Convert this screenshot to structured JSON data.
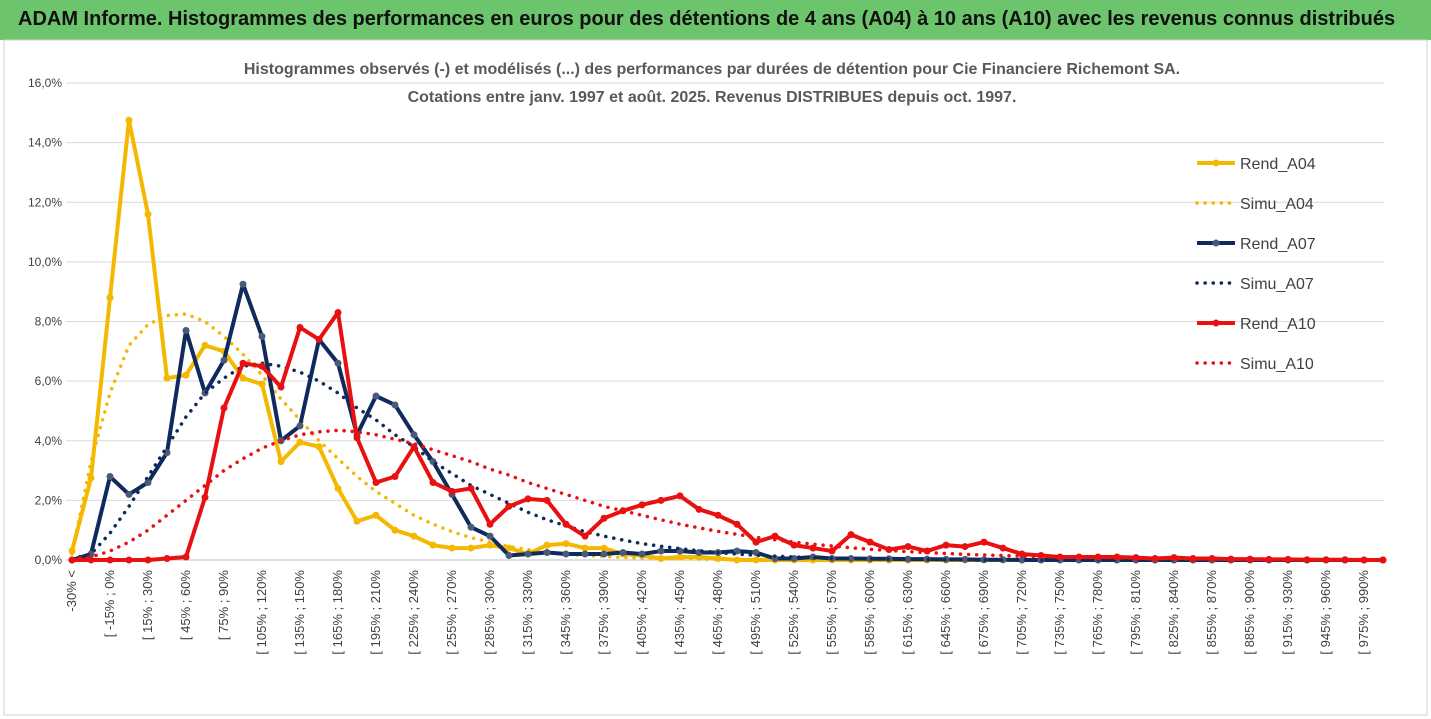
{
  "header": {
    "title": "ADAM Informe. Histogrammes des performances en euros pour des détentions de 4 ans (A04) à 10 ans (A10) avec les revenus connus distribués"
  },
  "chart_data": {
    "type": "line",
    "title": [
      "Histogrammes observés (-) et modélisés (...) des performances par durées de détention pour Cie Financiere Richemont SA.",
      "Cotations entre janv. 1997 et août. 2025. Revenus DISTRIBUES depuis oct. 1997."
    ],
    "categories": [
      "-30% <",
      null,
      "[ -15% ; 0%",
      null,
      "[ 15% ; 30%",
      null,
      "[ 45% ; 60%",
      null,
      "[ 75% ; 90%",
      null,
      "[ 105% ; 120%",
      null,
      "[ 135% ; 150%",
      null,
      "[ 165% ; 180%",
      null,
      "[ 195% ; 210%",
      null,
      "[ 225% ; 240%",
      null,
      "[ 255% ; 270%",
      null,
      "[ 285% ; 300%",
      null,
      "[ 315% ; 330%",
      null,
      "[ 345% ; 360%",
      null,
      "[ 375% ; 390%",
      null,
      "[ 405% ; 420%",
      null,
      "[ 435% ; 450%",
      null,
      "[ 465% ; 480%",
      null,
      "[ 495% ; 510%",
      null,
      "[ 525% ; 540%",
      null,
      "[ 555% ; 570%",
      null,
      "[ 585% ; 600%",
      null,
      "[ 615% ; 630%",
      null,
      "[ 645% ; 660%",
      null,
      "[ 675% ; 690%",
      null,
      "[ 705% ; 720%",
      null,
      "[ 735% ; 750%",
      null,
      "[ 765% ; 780%",
      null,
      "[ 795% ; 810%",
      null,
      "[ 825% ; 840%",
      null,
      "[ 855% ; 870%",
      null,
      "[ 885% ; 900%",
      null,
      "[ 915% ; 930%",
      null,
      "[ 945% ; 960%",
      null,
      "[ 975% ; 990%",
      null
    ],
    "series": [
      {
        "name": "Rend_A04",
        "color": "#f5b800",
        "style": "solid",
        "marker": true,
        "values": [
          0.3,
          2.75,
          8.8,
          14.75,
          11.6,
          6.1,
          6.2,
          7.2,
          7.0,
          6.1,
          5.9,
          3.3,
          3.95,
          3.8,
          2.4,
          1.3,
          1.5,
          1.0,
          0.8,
          0.5,
          0.4,
          0.4,
          0.5,
          0.4,
          0.2,
          0.5,
          0.55,
          0.4,
          0.4,
          0.2,
          0.15,
          0.05,
          0.1,
          0.1,
          0.05,
          0,
          0,
          0,
          0,
          0,
          0,
          0,
          0,
          0,
          0,
          0,
          0,
          0,
          0,
          0,
          0,
          0,
          0,
          0,
          0,
          0,
          0,
          0,
          0,
          0,
          0,
          0,
          0,
          0,
          0,
          0,
          0,
          0,
          0,
          0
        ]
      },
      {
        "name": "Simu_A04",
        "color": "#f5b800",
        "style": "dotted",
        "marker": false,
        "values": [
          0.2,
          3.3,
          5.6,
          7.2,
          7.9,
          8.2,
          8.25,
          8.0,
          7.5,
          6.9,
          6.2,
          5.4,
          4.7,
          4.0,
          3.4,
          2.8,
          2.3,
          1.9,
          1.5,
          1.2,
          0.95,
          0.75,
          0.6,
          0.45,
          0.35,
          0.27,
          0.2,
          0.15,
          0.12,
          0.09,
          0.07,
          0.05,
          0.04,
          0.03,
          0.02,
          0.015,
          0.01,
          0,
          0,
          0,
          0,
          0,
          0,
          0,
          0,
          0,
          0,
          0,
          0,
          0,
          0,
          0,
          0,
          0,
          0,
          0,
          0,
          0,
          0,
          0,
          0,
          0,
          0,
          0,
          0,
          0,
          0,
          0,
          0,
          0
        ]
      },
      {
        "name": "Rend_A07",
        "color": "#0f2a5c",
        "style": "solid",
        "marker": true,
        "values": [
          0,
          0.2,
          2.8,
          2.2,
          2.6,
          3.6,
          7.7,
          5.6,
          6.7,
          9.25,
          7.5,
          4.0,
          4.5,
          7.4,
          6.6,
          4.2,
          5.5,
          5.2,
          4.2,
          3.3,
          2.2,
          1.1,
          0.8,
          0.15,
          0.2,
          0.25,
          0.2,
          0.2,
          0.2,
          0.25,
          0.2,
          0.3,
          0.3,
          0.25,
          0.25,
          0.3,
          0.25,
          0.05,
          0.05,
          0.1,
          0.05,
          0.05,
          0.04,
          0.04,
          0.03,
          0.03,
          0.02,
          0.02,
          0.01,
          0.01,
          0,
          0,
          0,
          0,
          0,
          0,
          0,
          0,
          0,
          0,
          0,
          0,
          0,
          0,
          0,
          0,
          0,
          0,
          0,
          0
        ]
      },
      {
        "name": "Simu_A07",
        "color": "#0f2a5c",
        "style": "dotted",
        "marker": false,
        "values": [
          0.05,
          0.2,
          0.9,
          1.8,
          2.8,
          3.8,
          4.8,
          5.6,
          6.1,
          6.5,
          6.6,
          6.5,
          6.3,
          6.0,
          5.6,
          5.1,
          4.7,
          4.2,
          3.8,
          3.3,
          2.9,
          2.5,
          2.2,
          1.9,
          1.6,
          1.35,
          1.15,
          0.95,
          0.8,
          0.67,
          0.55,
          0.46,
          0.38,
          0.31,
          0.25,
          0.2,
          0.16,
          0.13,
          0.1,
          0.08,
          0.06,
          0.05,
          0.04,
          0.03,
          0.02,
          0.02,
          0.01,
          0,
          0,
          0,
          0,
          0,
          0,
          0,
          0,
          0,
          0,
          0,
          0,
          0,
          0,
          0,
          0,
          0,
          0,
          0,
          0,
          0,
          0,
          0
        ]
      },
      {
        "name": "Rend_A10",
        "color": "#e81010",
        "style": "solid",
        "marker": true,
        "values": [
          0,
          0,
          0,
          0,
          0,
          0.05,
          0.1,
          2.1,
          5.1,
          6.6,
          6.5,
          5.8,
          7.8,
          7.4,
          8.3,
          4.1,
          2.6,
          2.8,
          3.8,
          2.6,
          2.3,
          2.4,
          1.2,
          1.8,
          2.05,
          2.0,
          1.2,
          0.8,
          1.4,
          1.65,
          1.85,
          2.0,
          2.15,
          1.7,
          1.5,
          1.2,
          0.6,
          0.8,
          0.5,
          0.4,
          0.3,
          0.85,
          0.6,
          0.35,
          0.45,
          0.3,
          0.5,
          0.45,
          0.6,
          0.4,
          0.2,
          0.15,
          0.1,
          0.1,
          0.1,
          0.1,
          0.08,
          0.05,
          0.08,
          0.05,
          0.05,
          0.03,
          0.03,
          0.02,
          0.02,
          0.01,
          0.01,
          0.01,
          0,
          0
        ]
      },
      {
        "name": "Simu_A10",
        "color": "#e81010",
        "style": "dotted",
        "marker": false,
        "values": [
          0.05,
          0.1,
          0.3,
          0.6,
          1.0,
          1.5,
          2.0,
          2.5,
          3.0,
          3.4,
          3.75,
          4.0,
          4.2,
          4.3,
          4.35,
          4.3,
          4.2,
          4.05,
          3.9,
          3.7,
          3.5,
          3.3,
          3.05,
          2.85,
          2.6,
          2.4,
          2.2,
          2.0,
          1.8,
          1.65,
          1.5,
          1.35,
          1.2,
          1.08,
          0.96,
          0.86,
          0.76,
          0.68,
          0.6,
          0.53,
          0.47,
          0.41,
          0.36,
          0.32,
          0.28,
          0.25,
          0.22,
          0.19,
          0.17,
          0.15,
          0.13,
          0.11,
          0.1,
          0.09,
          0.08,
          0.07,
          0.06,
          0.05,
          0.045,
          0.04,
          0.035,
          0.03,
          0.025,
          0.02,
          0.02,
          0.015,
          0.015,
          0.01,
          0.01,
          0.01
        ]
      }
    ],
    "ylim": [
      0,
      16
    ],
    "yticks": [
      {
        "value": 0,
        "label": "0,0%"
      },
      {
        "value": 2,
        "label": "2,0%"
      },
      {
        "value": 4,
        "label": "4,0%"
      },
      {
        "value": 6,
        "label": "6,0%"
      },
      {
        "value": 8,
        "label": "8,0%"
      },
      {
        "value": 10,
        "label": "10,0%"
      },
      {
        "value": 12,
        "label": "12,0%"
      },
      {
        "value": 14,
        "label": "14,0%"
      },
      {
        "value": 16,
        "label": "16,0%"
      }
    ],
    "grid": true,
    "legend": "right"
  }
}
